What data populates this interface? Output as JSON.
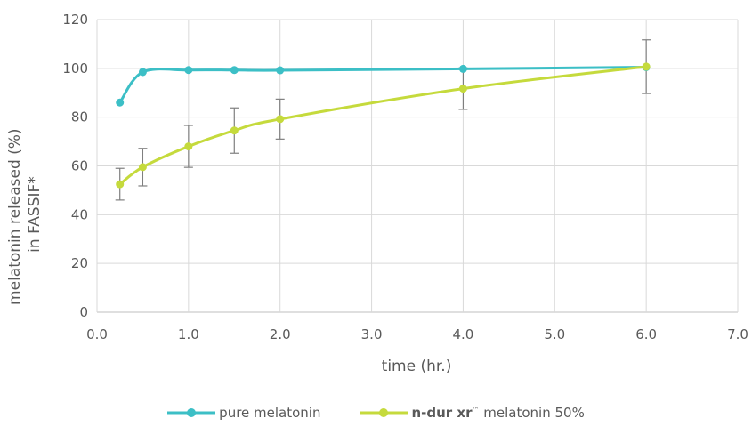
{
  "chart_data": {
    "type": "line",
    "xlabel": "time (hr.)",
    "ylabel_lines": [
      "melatonin released (%)",
      "in FASSIF*"
    ],
    "xlim": [
      0,
      7
    ],
    "ylim": [
      0,
      120
    ],
    "xticks": [
      "0.0",
      "1.0",
      "2.0",
      "3.0",
      "4.0",
      "5.0",
      "6.0",
      "7.0"
    ],
    "yticks": [
      "0",
      "20",
      "40",
      "60",
      "80",
      "100",
      "120"
    ],
    "grid": true,
    "legend_position": "bottom",
    "series": [
      {
        "name": "pure melatonin",
        "color": "#3CBFC6",
        "x": [
          0.25,
          0.5,
          1.0,
          1.5,
          2.0,
          4.0,
          6.0
        ],
        "y": [
          86,
          98.5,
          99.3,
          99.3,
          99.2,
          99.8,
          100.5
        ]
      },
      {
        "name": "n-dur xr™ melatonin 50%",
        "name_bold": "n-dur xr",
        "name_tm": "™",
        "name_rest": " melatonin 50%",
        "color": "#C5DA3C",
        "x": [
          0.25,
          0.5,
          1.0,
          1.5,
          2.0,
          4.0,
          6.0
        ],
        "y": [
          52.5,
          59.5,
          68,
          74.5,
          79.2,
          91.7,
          100.7
        ],
        "error": [
          6.5,
          7.7,
          8.6,
          9.3,
          8.2,
          8.5,
          11
        ]
      }
    ]
  }
}
